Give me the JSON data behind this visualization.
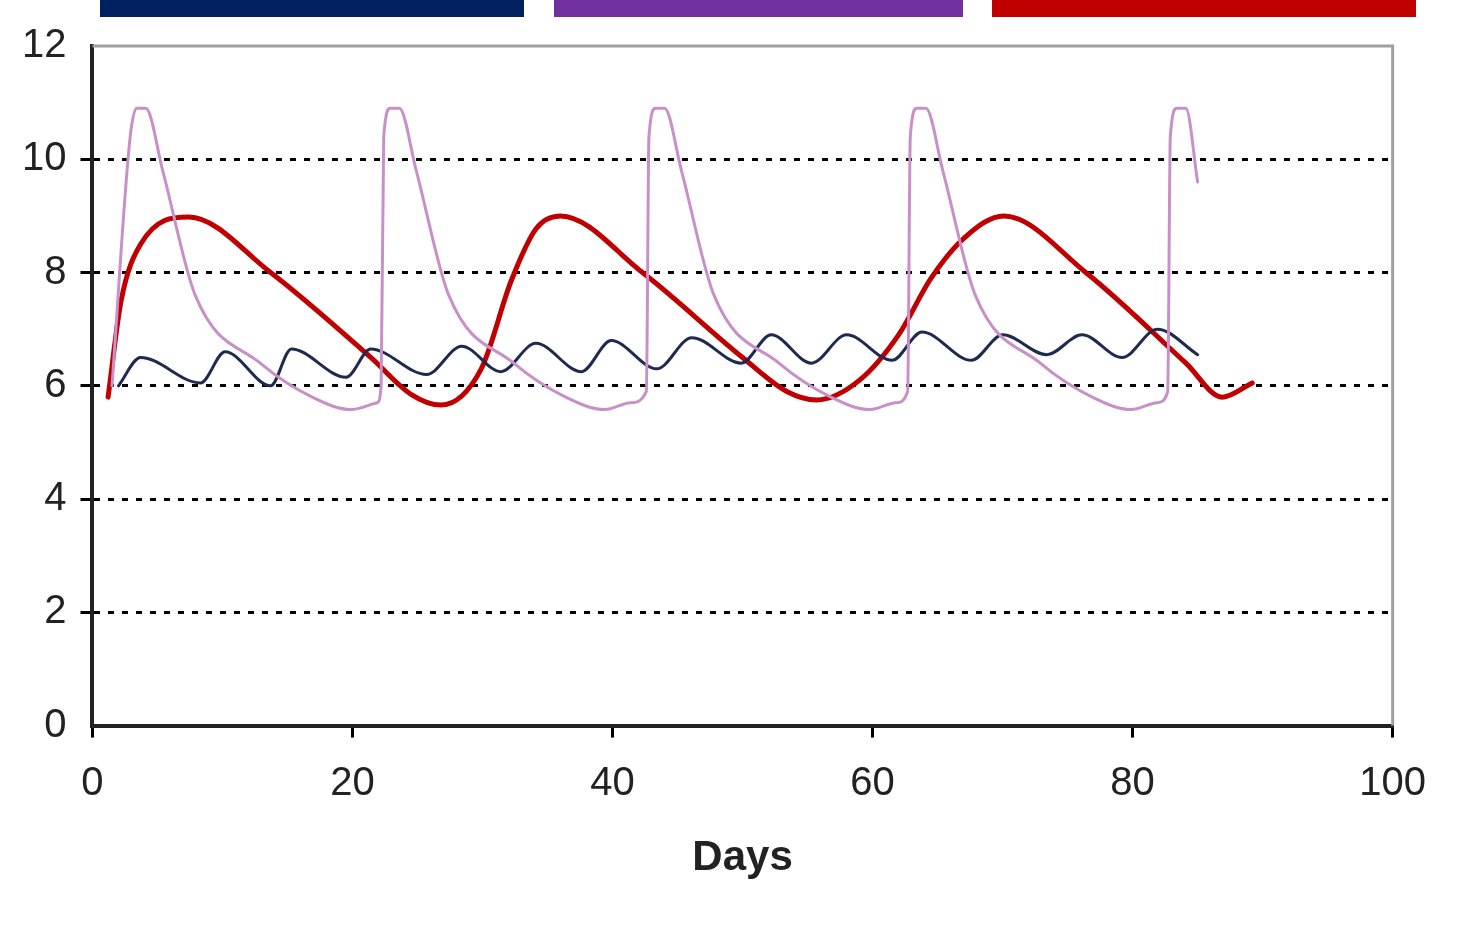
{
  "chart_data": {
    "type": "line",
    "xlabel": "Days",
    "xlim": [
      0,
      100
    ],
    "xticks": [
      0,
      20,
      40,
      60,
      80,
      100
    ],
    "ylim": [
      0,
      12
    ],
    "yticks": [
      0,
      2,
      4,
      6,
      8,
      10,
      12
    ],
    "grid": "y",
    "legend": false,
    "marker": "none",
    "line_style": "solid",
    "series": [
      {
        "color": "#c890c8",
        "x": [
          1.5,
          2.9,
          3.4,
          4.1,
          5.4,
          7.9,
          12.9,
          16.9,
          19.9,
          21.9,
          22.2,
          22.4,
          22.9,
          23.6,
          24.9,
          27.4,
          32.4,
          36.4,
          39.4,
          41.4,
          42.6,
          42.8,
          43.3,
          44,
          45.3,
          47.8,
          52.8,
          56.8,
          59.8,
          61.8,
          62.7,
          62.9,
          63.4,
          64.1,
          65.4,
          67.9,
          72.9,
          76.9,
          79.9,
          81.9,
          82.7,
          82.9,
          83.4,
          84.1,
          85
        ],
        "values": [
          6.0,
          10.4,
          10.9,
          10.9,
          9.8,
          7.6,
          6.4,
          5.8,
          5.58,
          5.7,
          6.0,
          10.4,
          10.9,
          10.9,
          9.8,
          7.6,
          6.4,
          5.8,
          5.58,
          5.7,
          5.9,
          10.4,
          10.9,
          10.9,
          9.8,
          7.6,
          6.4,
          5.8,
          5.58,
          5.7,
          5.9,
          10.4,
          10.9,
          10.9,
          9.8,
          7.6,
          6.4,
          5.8,
          5.58,
          5.7,
          5.9,
          10.4,
          10.9,
          10.9,
          9.6
        ]
      },
      {
        "color": "#1f2a50",
        "x": [
          2,
          3.7,
          8.3,
          10.2,
          13.7,
          15.3,
          19.5,
          21.4,
          25.7,
          28.4,
          31.4,
          34.1,
          37.6,
          39.9,
          43.4,
          46.1,
          49.9,
          52.2,
          55.3,
          58,
          61.5,
          63.8,
          67.6,
          70,
          73.4,
          76.1,
          79.2,
          81.9,
          85
        ],
        "values": [
          6.0,
          6.5,
          6.05,
          6.6,
          6.0,
          6.65,
          6.15,
          6.65,
          6.2,
          6.7,
          6.25,
          6.75,
          6.25,
          6.8,
          6.3,
          6.85,
          6.4,
          6.9,
          6.4,
          6.9,
          6.45,
          6.95,
          6.45,
          6.9,
          6.55,
          6.9,
          6.5,
          7.0,
          6.55
        ]
      },
      {
        "color": "#c00000",
        "x": [
          1.2,
          2.2,
          3.7,
          7.4,
          13.7,
          21.4,
          24.5,
          26.8,
          29.9,
          32.2,
          34.1,
          36,
          42.3,
          50,
          53.4,
          55.7,
          59,
          62,
          64.5,
          67,
          70.1,
          76.4,
          84.1,
          86.9,
          89.2
        ],
        "values": [
          5.8,
          7.5,
          8.5,
          8.98,
          8.0,
          6.5,
          5.85,
          5.66,
          6.3,
          7.85,
          8.77,
          9.0,
          8.0,
          6.5,
          5.9,
          5.75,
          6.1,
          6.9,
          7.9,
          8.6,
          9.0,
          8.0,
          6.4,
          5.8,
          6.05
        ]
      }
    ]
  }
}
